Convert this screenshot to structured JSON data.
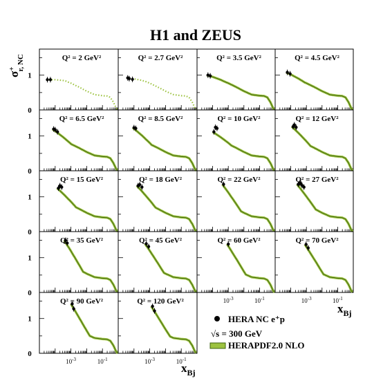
{
  "chart_data": {
    "type": "scatter",
    "title": "H1 and ZEUS",
    "ylabel": {
      "base": "σ",
      "sup": "+",
      "sub": "r, NC"
    },
    "xlabel": {
      "base": "x",
      "sub": "Bj"
    },
    "xscale": "log",
    "xlim": [
      1e-05,
      1
    ],
    "ylim": [
      0,
      1.75
    ],
    "y_ticks": [
      "0",
      "1"
    ],
    "x_ticks": [
      {
        "value": 0.001,
        "base": "10",
        "exp": "-3"
      },
      {
        "value": 0.1,
        "base": "10",
        "exp": "-1"
      }
    ],
    "panels": [
      {
        "q2": "Q² = 2 GeV²",
        "curve_style": "dotted",
        "points": [
          [
            3.2e-05,
            0.87
          ],
          [
            5e-05,
            0.87
          ]
        ]
      },
      {
        "q2": "Q² = 2.7 GeV²",
        "curve_style": "dotted",
        "points": [
          [
            4e-05,
            0.92
          ],
          [
            5e-05,
            0.9
          ],
          [
            8e-05,
            0.88
          ]
        ]
      },
      {
        "q2": "Q² = 3.5 GeV²",
        "curve_style": "solid",
        "points": [
          [
            5e-05,
            1.0
          ],
          [
            7e-05,
            0.98
          ]
        ]
      },
      {
        "q2": "Q² = 4.5 GeV²",
        "curve_style": "solid",
        "points": [
          [
            6e-05,
            1.08
          ],
          [
            9e-05,
            1.04
          ]
        ]
      },
      {
        "q2": "Q² = 6.5 GeV²",
        "curve_style": "solid",
        "points": [
          [
            8e-05,
            1.2
          ],
          [
            0.0001,
            1.18
          ],
          [
            0.00014,
            1.12
          ]
        ]
      },
      {
        "q2": "Q² = 8.5 GeV²",
        "curve_style": "solid",
        "points": [
          [
            0.0001,
            1.24
          ],
          [
            0.00013,
            1.22
          ]
        ]
      },
      {
        "q2": "Q² = 10 GeV²",
        "curve_style": "solid",
        "points": [
          [
            0.00012,
            1.12
          ],
          [
            0.00015,
            1.25
          ],
          [
            0.00019,
            1.22
          ]
        ]
      },
      {
        "q2": "Q² = 12 GeV²",
        "curve_style": "solid",
        "points": [
          [
            0.00014,
            1.27
          ],
          [
            0.00017,
            1.32
          ],
          [
            0.00022,
            1.25
          ]
        ]
      },
      {
        "q2": "Q² = 15 GeV²",
        "curve_style": "solid",
        "points": [
          [
            0.00016,
            1.25
          ],
          [
            0.0002,
            1.32
          ],
          [
            0.00026,
            1.28
          ]
        ]
      },
      {
        "q2": "Q² = 18 GeV²",
        "curve_style": "solid",
        "points": [
          [
            0.00018,
            1.32
          ],
          [
            0.00023,
            1.35
          ],
          [
            0.00032,
            1.28
          ]
        ]
      },
      {
        "q2": "Q² = 22 GeV²",
        "curve_style": "solid",
        "points": [
          [
            0.0005,
            1.36
          ]
        ]
      },
      {
        "q2": "Q² = 27 GeV²",
        "curve_style": "solid",
        "points": [
          [
            0.0003,
            1.36
          ],
          [
            0.00038,
            1.4
          ],
          [
            0.00045,
            1.38
          ],
          [
            0.00052,
            1.33
          ],
          [
            0.0007,
            1.28
          ]
        ]
      },
      {
        "q2": "Q² = 35 GeV²",
        "curve_style": "solid",
        "points": [
          [
            0.00045,
            1.5
          ],
          [
            0.00058,
            1.42
          ]
        ]
      },
      {
        "q2": "Q² = 45 GeV²",
        "curve_style": "solid",
        "points": [
          [
            0.0006,
            1.4
          ],
          [
            0.00085,
            1.32
          ]
        ]
      },
      {
        "q2": "Q² = 60 GeV²",
        "curve_style": "solid",
        "points": [
          [
            0.001,
            1.39
          ]
        ]
      },
      {
        "q2": "Q² = 70 GeV²",
        "curve_style": "solid",
        "points": [
          [
            0.00095,
            1.38
          ],
          [
            0.0013,
            1.28
          ]
        ]
      },
      {
        "q2": "Q² = 90 GeV²",
        "curve_style": "solid",
        "points": [
          [
            0.0012,
            1.42
          ],
          [
            0.0015,
            1.28
          ]
        ]
      },
      {
        "q2": "Q² = 120 GeV²",
        "curve_style": "solid",
        "points": [
          [
            0.0015,
            1.35
          ],
          [
            0.002,
            1.22
          ]
        ]
      }
    ],
    "legend": {
      "placement": "bottom-right",
      "marker_label": "HERA NC e⁺p",
      "energy_label": "√s = 300 GeV",
      "curve_label": "HERAPDF2.0 NLO"
    },
    "colors": {
      "curve": "#6f9a1a",
      "curve_dark": "#3f6410",
      "band": "#9cc23f",
      "points": "#000000"
    }
  }
}
